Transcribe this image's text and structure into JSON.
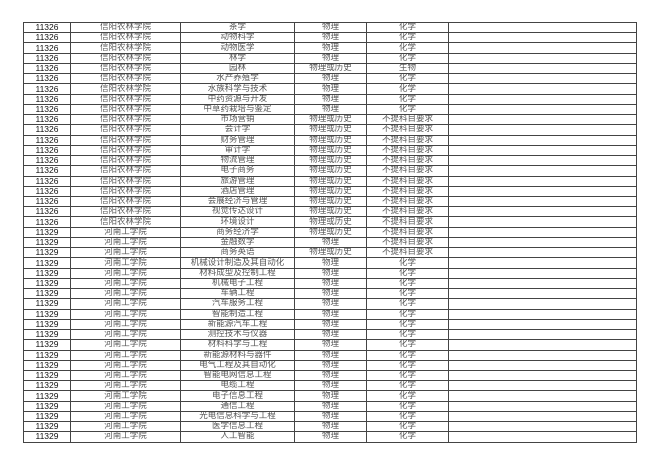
{
  "rows": [
    [
      "11326",
      "信阳农林学院",
      "茶学",
      "物理",
      "化学",
      ""
    ],
    [
      "11326",
      "信阳农林学院",
      "动物科学",
      "物理",
      "化学",
      ""
    ],
    [
      "11326",
      "信阳农林学院",
      "动物医学",
      "物理",
      "化学",
      ""
    ],
    [
      "11326",
      "信阳农林学院",
      "林学",
      "物理",
      "化学",
      ""
    ],
    [
      "11326",
      "信阳农林学院",
      "园林",
      "物理或历史",
      "生物",
      ""
    ],
    [
      "11326",
      "信阳农林学院",
      "水产养殖学",
      "物理",
      "化学",
      ""
    ],
    [
      "11326",
      "信阳农林学院",
      "水族科学与技术",
      "物理",
      "化学",
      ""
    ],
    [
      "11326",
      "信阳农林学院",
      "中药资源与开发",
      "物理",
      "化学",
      ""
    ],
    [
      "11326",
      "信阳农林学院",
      "中草药栽培与鉴定",
      "物理",
      "化学",
      ""
    ],
    [
      "11326",
      "信阳农林学院",
      "市场营销",
      "物理或历史",
      "不提科目要求",
      ""
    ],
    [
      "11326",
      "信阳农林学院",
      "会计学",
      "物理或历史",
      "不提科目要求",
      ""
    ],
    [
      "11326",
      "信阳农林学院",
      "财务管理",
      "物理或历史",
      "不提科目要求",
      ""
    ],
    [
      "11326",
      "信阳农林学院",
      "审计学",
      "物理或历史",
      "不提科目要求",
      ""
    ],
    [
      "11326",
      "信阳农林学院",
      "物流管理",
      "物理或历史",
      "不提科目要求",
      ""
    ],
    [
      "11326",
      "信阳农林学院",
      "电子商务",
      "物理或历史",
      "不提科目要求",
      ""
    ],
    [
      "11326",
      "信阳农林学院",
      "旅游管理",
      "物理或历史",
      "不提科目要求",
      ""
    ],
    [
      "11326",
      "信阳农林学院",
      "酒店管理",
      "物理或历史",
      "不提科目要求",
      ""
    ],
    [
      "11326",
      "信阳农林学院",
      "会展经济与管理",
      "物理或历史",
      "不提科目要求",
      ""
    ],
    [
      "11326",
      "信阳农林学院",
      "视觉传达设计",
      "物理或历史",
      "不提科目要求",
      ""
    ],
    [
      "11326",
      "信阳农林学院",
      "环境设计",
      "物理或历史",
      "不提科目要求",
      ""
    ],
    [
      "11329",
      "河南工学院",
      "商务经济学",
      "物理或历史",
      "不提科目要求",
      ""
    ],
    [
      "11329",
      "河南工学院",
      "金融数学",
      "物理",
      "不提科目要求",
      ""
    ],
    [
      "11329",
      "河南工学院",
      "商务英语",
      "物理或历史",
      "不提科目要求",
      ""
    ],
    [
      "11329",
      "河南工学院",
      "机械设计制造及其自动化",
      "物理",
      "化学",
      ""
    ],
    [
      "11329",
      "河南工学院",
      "材料成型及控制工程",
      "物理",
      "化学",
      ""
    ],
    [
      "11329",
      "河南工学院",
      "机械电子工程",
      "物理",
      "化学",
      ""
    ],
    [
      "11329",
      "河南工学院",
      "车辆工程",
      "物理",
      "化学",
      ""
    ],
    [
      "11329",
      "河南工学院",
      "汽车服务工程",
      "物理",
      "化学",
      ""
    ],
    [
      "11329",
      "河南工学院",
      "智能制造工程",
      "物理",
      "化学",
      ""
    ],
    [
      "11329",
      "河南工学院",
      "新能源汽车工程",
      "物理",
      "化学",
      ""
    ],
    [
      "11329",
      "河南工学院",
      "测控技术与仪器",
      "物理",
      "化学",
      ""
    ],
    [
      "11329",
      "河南工学院",
      "材料科学与工程",
      "物理",
      "化学",
      ""
    ],
    [
      "11329",
      "河南工学院",
      "新能源材料与器件",
      "物理",
      "化学",
      ""
    ],
    [
      "11329",
      "河南工学院",
      "电气工程及其自动化",
      "物理",
      "化学",
      ""
    ],
    [
      "11329",
      "河南工学院",
      "智能电网信息工程",
      "物理",
      "化学",
      ""
    ],
    [
      "11329",
      "河南工学院",
      "电缆工程",
      "物理",
      "化学",
      ""
    ],
    [
      "11329",
      "河南工学院",
      "电子信息工程",
      "物理",
      "化学",
      ""
    ],
    [
      "11329",
      "河南工学院",
      "通信工程",
      "物理",
      "化学",
      ""
    ],
    [
      "11329",
      "河南工学院",
      "光电信息科学与工程",
      "物理",
      "化学",
      ""
    ],
    [
      "11329",
      "河南工学院",
      "医学信息工程",
      "物理",
      "化学",
      ""
    ],
    [
      "11329",
      "河南工学院",
      "人工智能",
      "物理",
      "化学",
      ""
    ]
  ]
}
